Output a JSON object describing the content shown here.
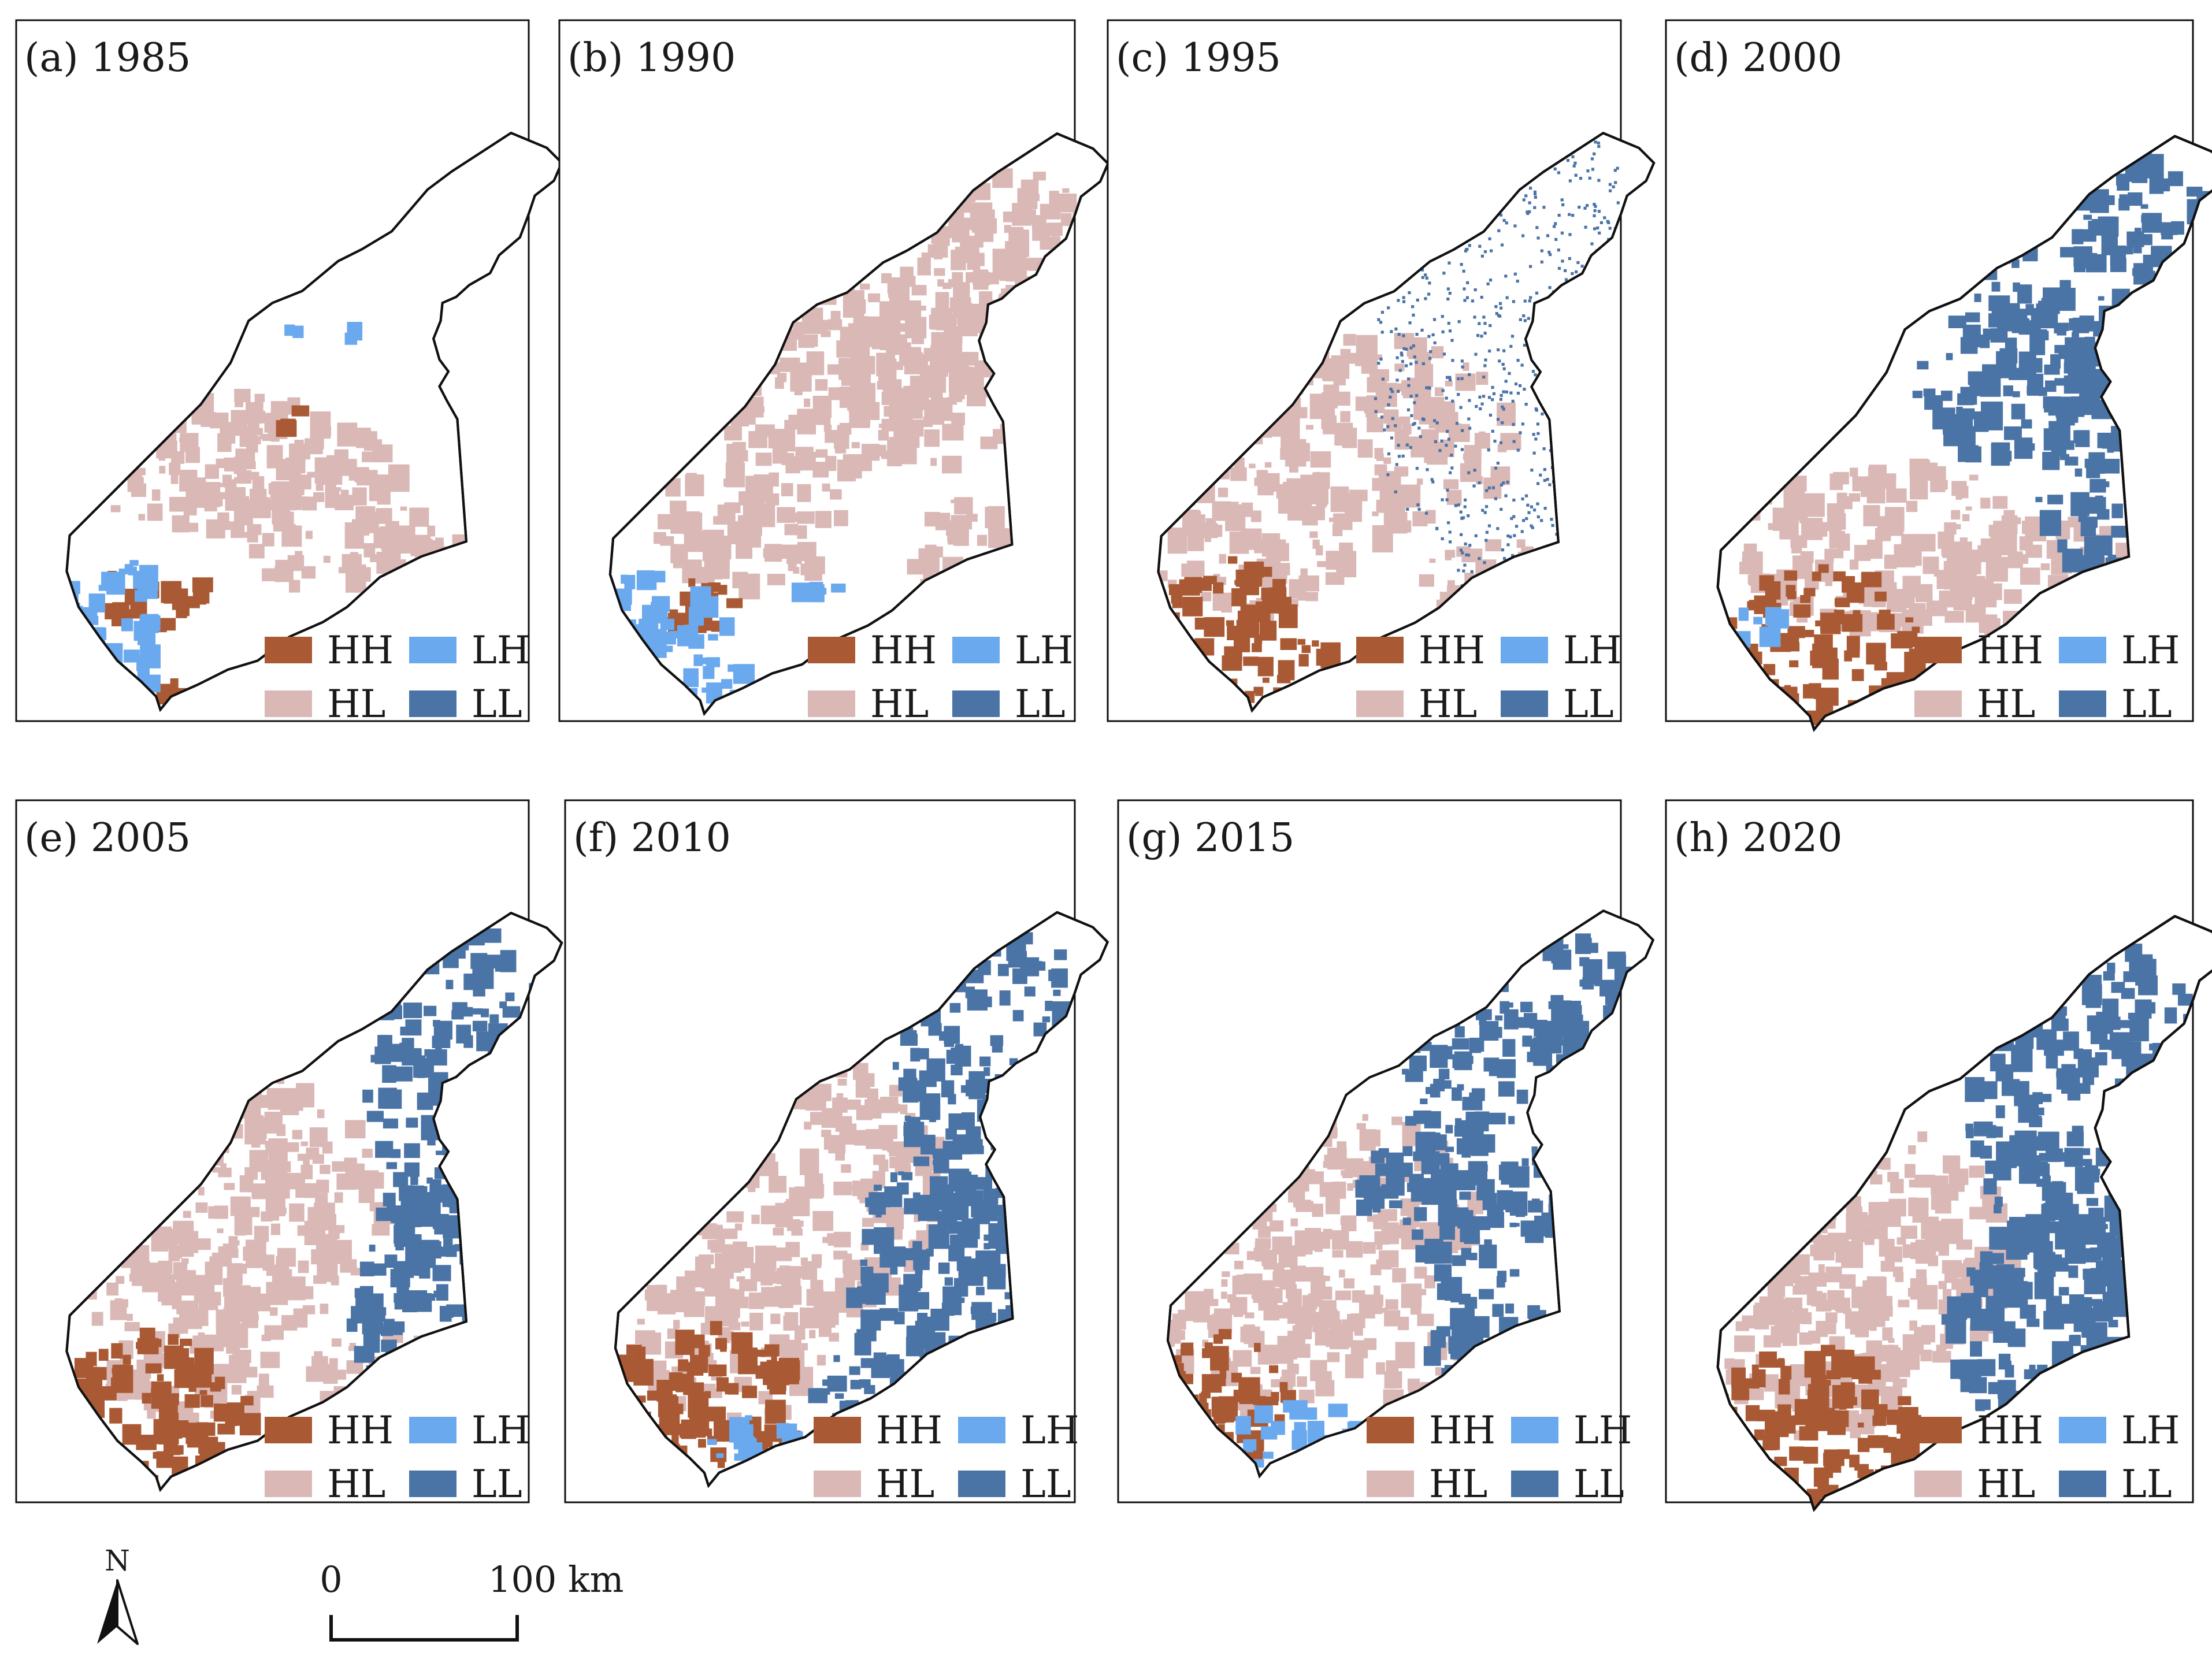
{
  "figure": {
    "panels": [
      {
        "label": "(a) 1985"
      },
      {
        "label": "(b) 1990"
      },
      {
        "label": "(c) 1995"
      },
      {
        "label": "(d) 2000"
      },
      {
        "label": "(e) 2005"
      },
      {
        "label": "(f) 2010"
      },
      {
        "label": "(g) 2015"
      },
      {
        "label": "(h) 2020"
      }
    ],
    "legend": [
      {
        "code": "HH",
        "color": "#a95a34"
      },
      {
        "code": "LH",
        "color": "#6aa9ee"
      },
      {
        "code": "HL",
        "color": "#d9b8b6"
      },
      {
        "code": "LL",
        "color": "#4a73a6"
      }
    ],
    "scale_bar": {
      "start": "0",
      "end": "100 km"
    },
    "north_arrow": {
      "label": "N",
      "icon": "north-arrow-icon"
    }
  }
}
